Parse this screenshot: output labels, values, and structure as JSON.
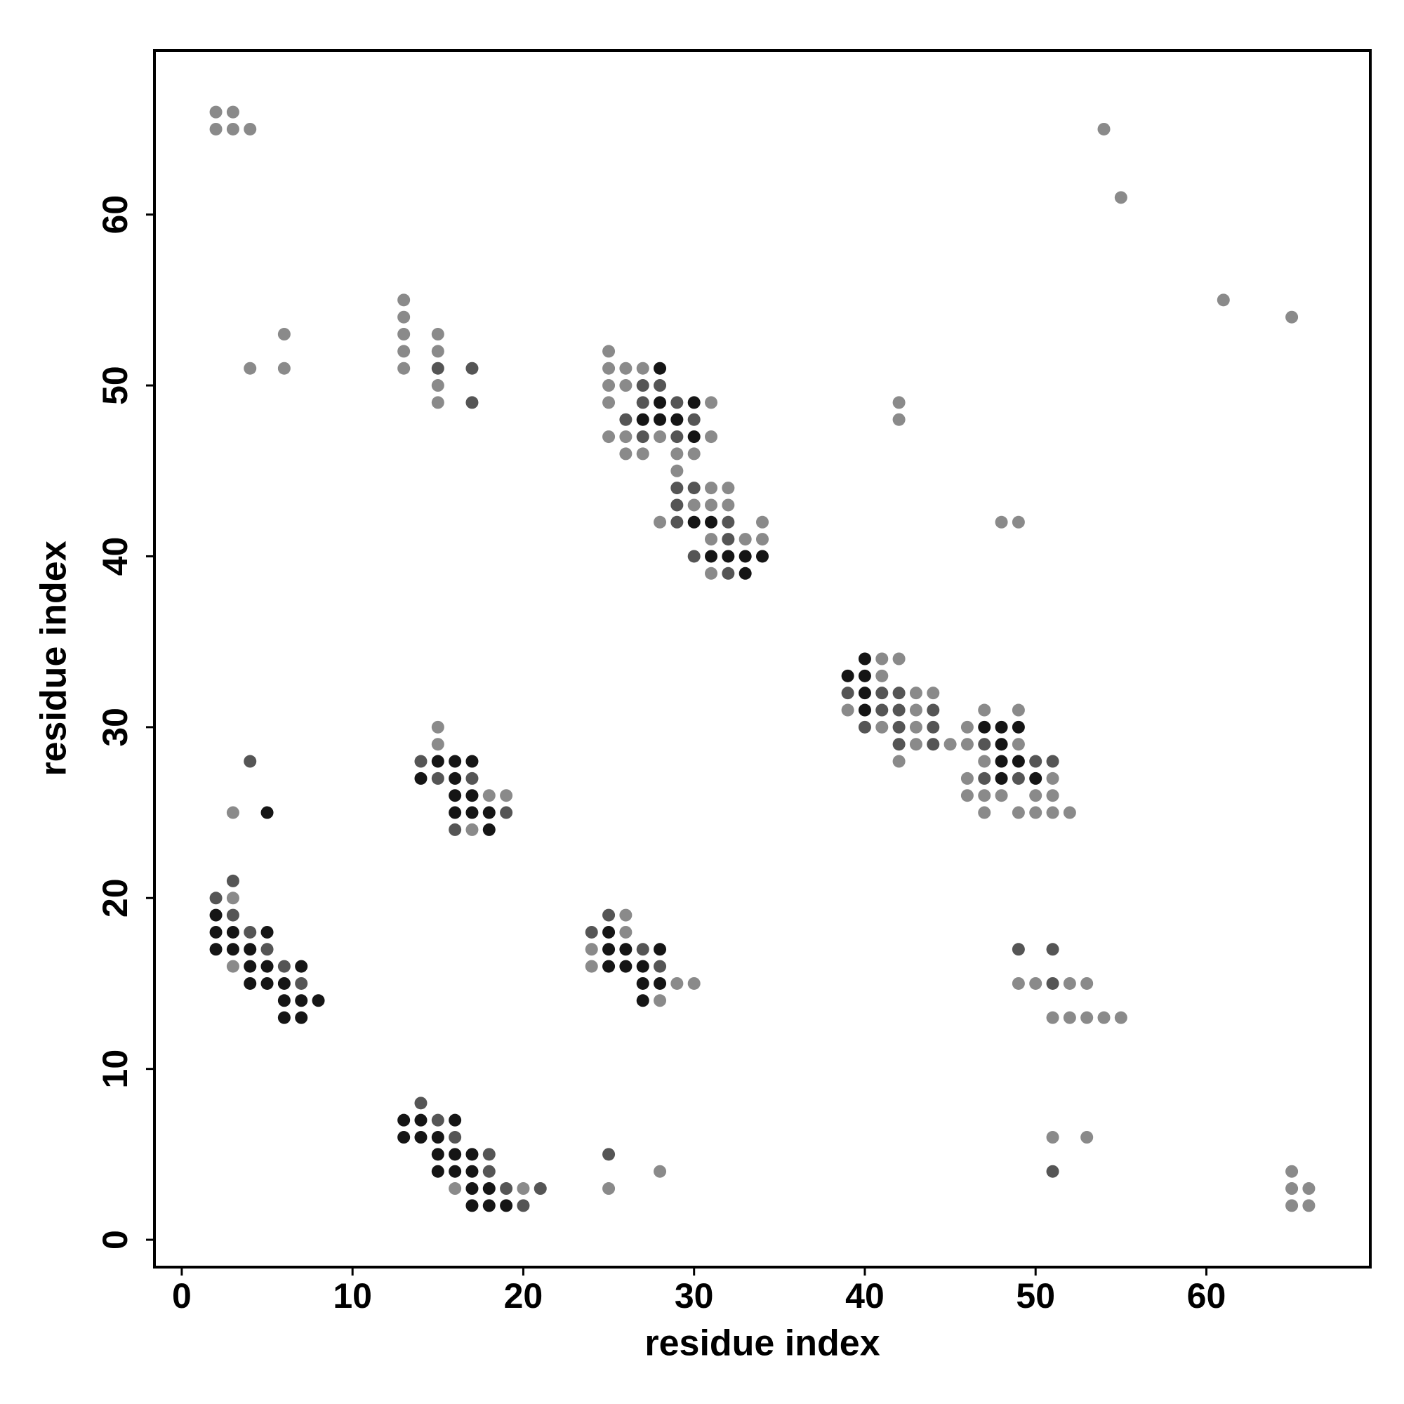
{
  "chart_data": {
    "type": "scatter",
    "xlabel": "residue index",
    "ylabel": "residue index",
    "xlim": [
      -1.6,
      69.6
    ],
    "ylim": [
      -1.6,
      69.6
    ],
    "xticks": [
      0,
      10,
      20,
      30,
      40,
      50,
      60
    ],
    "yticks": [
      0,
      10,
      20,
      30,
      40,
      50,
      60
    ],
    "series": [
      {
        "color": "#8a8a8a",
        "x": [
          2,
          3,
          2,
          3,
          4,
          6,
          4,
          6,
          13,
          13,
          13,
          13,
          13,
          15,
          15,
          15,
          15,
          25,
          25,
          25,
          25,
          25,
          26,
          26,
          26,
          26,
          27,
          27,
          28,
          28,
          29,
          29,
          30,
          30,
          31,
          31,
          31,
          31,
          31,
          31,
          32,
          32,
          33,
          34,
          34,
          42,
          42,
          48,
          49,
          54,
          55,
          61,
          65,
          39,
          41,
          41,
          41,
          42,
          42,
          43,
          43,
          43,
          43,
          44,
          45,
          46,
          46,
          46,
          46,
          47,
          47,
          47,
          47,
          48,
          49,
          49,
          49,
          50,
          50,
          51,
          51,
          51,
          52,
          15,
          15,
          17,
          18,
          19,
          3,
          3,
          3,
          24,
          24,
          26,
          26,
          28,
          29,
          30,
          49,
          50,
          52,
          53,
          51,
          52,
          53,
          54,
          55,
          51,
          53,
          16,
          20,
          25,
          28,
          65,
          65,
          66,
          65,
          66
        ],
        "values": [
          66,
          66,
          65,
          65,
          65,
          53,
          51,
          51,
          55,
          54,
          53,
          52,
          51,
          53,
          52,
          50,
          49,
          52,
          51,
          50,
          49,
          47,
          51,
          50,
          47,
          46,
          51,
          46,
          47,
          42,
          46,
          45,
          46,
          43,
          49,
          47,
          44,
          43,
          41,
          39,
          44,
          43,
          41,
          42,
          41,
          49,
          48,
          42,
          42,
          65,
          61,
          55,
          54,
          31,
          34,
          33,
          30,
          34,
          28,
          32,
          31,
          30,
          29,
          32,
          29,
          30,
          29,
          27,
          26,
          31,
          28,
          26,
          25,
          26,
          31,
          29,
          25,
          26,
          25,
          27,
          26,
          25,
          25,
          30,
          29,
          24,
          26,
          26,
          25,
          20,
          16,
          17,
          16,
          19,
          18,
          14,
          15,
          15,
          15,
          15,
          15,
          15,
          13,
          13,
          13,
          13,
          13,
          6,
          6,
          3,
          3,
          3,
          4,
          4,
          3,
          3,
          2,
          2
        ]
      },
      {
        "color": "#555555",
        "x": [
          15,
          17,
          17,
          26,
          27,
          27,
          27,
          28,
          29,
          29,
          29,
          29,
          29,
          30,
          30,
          30,
          32,
          32,
          32,
          39,
          40,
          41,
          41,
          42,
          42,
          42,
          42,
          44,
          44,
          44,
          47,
          47,
          49,
          50,
          51,
          14,
          15,
          16,
          17,
          19,
          4,
          2,
          3,
          3,
          4,
          5,
          6,
          7,
          24,
          25,
          27,
          28,
          49,
          51,
          51,
          51,
          14,
          15,
          16,
          18,
          18,
          19,
          20,
          21,
          25
        ],
        "values": [
          51,
          51,
          49,
          48,
          50,
          49,
          47,
          50,
          49,
          47,
          44,
          43,
          42,
          48,
          44,
          40,
          42,
          41,
          39,
          32,
          30,
          32,
          31,
          32,
          31,
          30,
          29,
          31,
          30,
          29,
          29,
          27,
          27,
          28,
          28,
          28,
          27,
          24,
          27,
          25,
          28,
          20,
          21,
          19,
          18,
          17,
          16,
          15,
          18,
          19,
          17,
          16,
          17,
          17,
          15,
          4,
          8,
          7,
          6,
          5,
          4,
          3,
          2,
          3,
          5
        ]
      },
      {
        "color": "#151515",
        "x": [
          27,
          28,
          28,
          28,
          29,
          30,
          30,
          30,
          31,
          31,
          32,
          33,
          33,
          34,
          39,
          40,
          40,
          40,
          40,
          47,
          48,
          48,
          48,
          48,
          49,
          49,
          50,
          14,
          15,
          16,
          16,
          16,
          16,
          17,
          17,
          17,
          18,
          18,
          5,
          2,
          2,
          2,
          3,
          3,
          4,
          4,
          4,
          5,
          5,
          5,
          6,
          6,
          6,
          7,
          7,
          7,
          8,
          25,
          25,
          25,
          26,
          26,
          27,
          27,
          27,
          28,
          28,
          13,
          13,
          14,
          14,
          15,
          15,
          15,
          16,
          16,
          16,
          17,
          17,
          17,
          17,
          18,
          18,
          19
        ],
        "values": [
          48,
          51,
          49,
          48,
          48,
          49,
          47,
          42,
          42,
          40,
          40,
          40,
          39,
          40,
          33,
          34,
          33,
          32,
          31,
          30,
          30,
          29,
          28,
          27,
          30,
          28,
          27,
          27,
          28,
          28,
          27,
          26,
          25,
          28,
          26,
          25,
          25,
          24,
          25,
          19,
          18,
          17,
          18,
          17,
          17,
          16,
          15,
          18,
          16,
          15,
          15,
          14,
          13,
          16,
          14,
          13,
          14,
          18,
          17,
          16,
          17,
          16,
          16,
          15,
          14,
          17,
          15,
          7,
          6,
          7,
          6,
          6,
          5,
          4,
          7,
          5,
          4,
          5,
          4,
          3,
          2,
          3,
          2,
          2
        ]
      }
    ]
  }
}
